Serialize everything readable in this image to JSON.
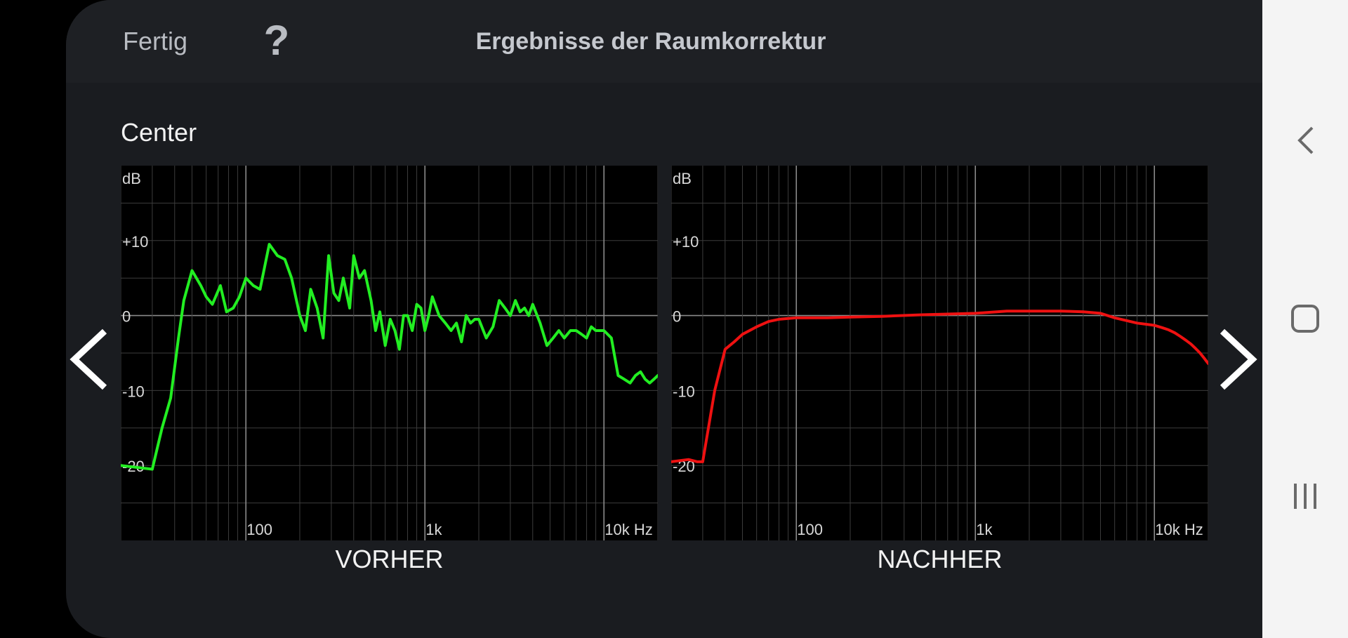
{
  "header": {
    "done_label": "Fertig",
    "help_label": "?",
    "title": "Ergebnisse der Raumkorrektur"
  },
  "channel": "Center",
  "colors": {
    "before_curve": "#22ee22",
    "after_curve": "#ee1111",
    "panel_bg": "#1a1c20",
    "header_bg": "#1e2024"
  },
  "icons": {
    "prev": "chevron-left-icon",
    "next": "chevron-right-icon",
    "sys_back": "back-icon",
    "sys_home": "home-icon",
    "sys_recents": "recents-icon"
  },
  "chart_data": [
    {
      "type": "line",
      "caption": "VORHER",
      "ylabel": "dB",
      "x_scale": "log",
      "xlim": [
        20,
        20000
      ],
      "ylim": [
        -30,
        20
      ],
      "y_ticks": [
        {
          "value": 10,
          "label": "+10"
        },
        {
          "value": 0,
          "label": "0"
        },
        {
          "value": -10,
          "label": "-10"
        },
        {
          "value": -20,
          "label": "-20"
        }
      ],
      "x_ticks": [
        {
          "value": 100,
          "label": "100"
        },
        {
          "value": 1000,
          "label": "1k"
        },
        {
          "value": 10000,
          "label": "10k Hz"
        }
      ],
      "grid": true,
      "color": "#22ee22",
      "series": [
        {
          "x": [
            20,
            30,
            34,
            38,
            42,
            45,
            50,
            56,
            60,
            65,
            72,
            78,
            85,
            92,
            100,
            110,
            120,
            135,
            150,
            165,
            180,
            200,
            215,
            230,
            250,
            270,
            290,
            310,
            330,
            350,
            380,
            400,
            430,
            460,
            500,
            530,
            560,
            600,
            640,
            680,
            720,
            760,
            800,
            850,
            900,
            950,
            1000,
            1050,
            1100,
            1200,
            1300,
            1400,
            1500,
            1600,
            1700,
            1800,
            1900,
            2000,
            2200,
            2400,
            2600,
            2800,
            3000,
            3200,
            3400,
            3600,
            3800,
            4000,
            4400,
            4800,
            5200,
            5600,
            6000,
            6500,
            7000,
            7500,
            8000,
            8500,
            9000,
            10000,
            11000,
            12000,
            13000,
            14000,
            15000,
            16000,
            17000,
            18000,
            19000,
            20000
          ],
          "y": [
            -20,
            -20.5,
            -15,
            -11,
            -3,
            2,
            6,
            4,
            2.5,
            1.5,
            4,
            0.5,
            1,
            2.5,
            5,
            4,
            3.5,
            9.5,
            8,
            7.5,
            5,
            0,
            -2,
            3.5,
            1,
            -3,
            8,
            3,
            2,
            5,
            1,
            8,
            5,
            6,
            2,
            -2,
            0.5,
            -4,
            -0.5,
            -2,
            -4.5,
            0,
            0,
            -2,
            1.5,
            1,
            -2,
            0,
            2.5,
            0,
            -1,
            -2,
            -1,
            -3.5,
            0,
            -1,
            -0.5,
            -0.5,
            -3,
            -1.5,
            2,
            1,
            0,
            2,
            0.5,
            1,
            0,
            1.5,
            -1,
            -4,
            -3,
            -2,
            -3,
            -2,
            -2,
            -2.5,
            -3,
            -1.5,
            -2,
            -2,
            -3,
            -8,
            -8.5,
            -9,
            -8,
            -7.5,
            -8.5,
            -9,
            -8.5,
            -8
          ]
        }
      ]
    },
    {
      "type": "line",
      "caption": "NACHHER",
      "ylabel": "dB",
      "x_scale": "log",
      "xlim": [
        20,
        20000
      ],
      "ylim": [
        -30,
        20
      ],
      "y_ticks": [
        {
          "value": 10,
          "label": "+10"
        },
        {
          "value": 0,
          "label": "0"
        },
        {
          "value": -10,
          "label": "-10"
        },
        {
          "value": -20,
          "label": "-20"
        }
      ],
      "x_ticks": [
        {
          "value": 100,
          "label": "100"
        },
        {
          "value": 1000,
          "label": "1k"
        },
        {
          "value": 10000,
          "label": "10k Hz"
        }
      ],
      "grid": true,
      "color": "#ee1111",
      "series": [
        {
          "x": [
            20,
            25,
            28,
            30,
            35,
            40,
            45,
            50,
            60,
            70,
            80,
            100,
            150,
            200,
            300,
            500,
            1000,
            1500,
            2000,
            3000,
            4000,
            5000,
            6000,
            8000,
            10000,
            11000,
            12000,
            13000,
            14000,
            15000,
            16000,
            17000,
            18000,
            19000,
            20000
          ],
          "y": [
            -19.5,
            -19.2,
            -19.5,
            -19.5,
            -10,
            -4.5,
            -3.5,
            -2.5,
            -1.5,
            -0.8,
            -0.5,
            -0.3,
            -0.3,
            -0.2,
            -0.1,
            0.1,
            0.3,
            0.6,
            0.6,
            0.6,
            0.5,
            0.3,
            -0.3,
            -1,
            -1.3,
            -1.6,
            -1.9,
            -2.3,
            -2.8,
            -3.3,
            -3.8,
            -4.4,
            -5,
            -5.7,
            -6.4
          ]
        }
      ]
    }
  ]
}
